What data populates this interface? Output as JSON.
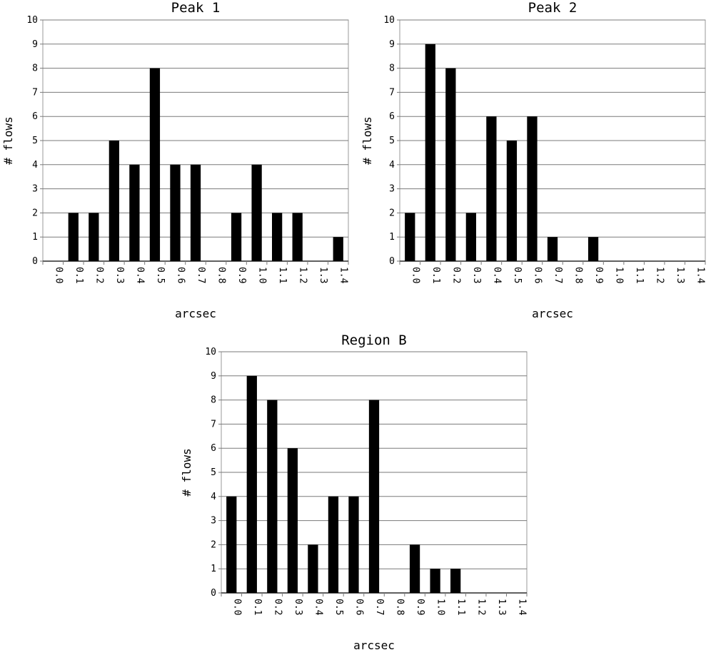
{
  "chart_data": [
    {
      "type": "bar",
      "title": "Peak 1",
      "xlabel": "arcsec",
      "ylabel": "# flows",
      "categories": [
        "0.0",
        "0.1",
        "0.2",
        "0.3",
        "0.4",
        "0.5",
        "0.6",
        "0.7",
        "0.8",
        "0.9",
        "1.0",
        "1.1",
        "1.2",
        "1.3",
        "1.4"
      ],
      "values": [
        0,
        2,
        2,
        5,
        4,
        8,
        4,
        4,
        0,
        2,
        4,
        2,
        2,
        0,
        1
      ],
      "ylim": [
        0,
        10
      ],
      "yticks": [
        0,
        1,
        2,
        3,
        4,
        5,
        6,
        7,
        8,
        9,
        10
      ],
      "grid": true,
      "legend": "none",
      "bar_color": "#000000"
    },
    {
      "type": "bar",
      "title": "Peak 2",
      "xlabel": "arcsec",
      "ylabel": "# flows",
      "categories": [
        "0.0",
        "0.1",
        "0.2",
        "0.3",
        "0.4",
        "0.5",
        "0.6",
        "0.7",
        "0.8",
        "0.9",
        "1.0",
        "1.1",
        "1.2",
        "1.3",
        "1.4"
      ],
      "values": [
        2,
        9,
        8,
        2,
        6,
        5,
        6,
        1,
        0,
        1,
        0,
        0,
        0,
        0,
        0
      ],
      "ylim": [
        0,
        10
      ],
      "yticks": [
        0,
        1,
        2,
        3,
        4,
        5,
        6,
        7,
        8,
        9,
        10
      ],
      "grid": true,
      "legend": "none",
      "bar_color": "#000000"
    },
    {
      "type": "bar",
      "title": "Region B",
      "xlabel": "arcsec",
      "ylabel": "# flows",
      "categories": [
        "0.0",
        "0.1",
        "0.2",
        "0.3",
        "0.4",
        "0.5",
        "0.6",
        "0.7",
        "0.8",
        "0.9",
        "1.0",
        "1.1",
        "1.2",
        "1.3",
        "1.4"
      ],
      "values": [
        4,
        9,
        8,
        6,
        2,
        4,
        4,
        8,
        0,
        2,
        1,
        1,
        0,
        0,
        0
      ],
      "ylim": [
        0,
        10
      ],
      "yticks": [
        0,
        1,
        2,
        3,
        4,
        5,
        6,
        7,
        8,
        9,
        10
      ],
      "grid": true,
      "legend": "none",
      "bar_color": "#000000"
    }
  ]
}
